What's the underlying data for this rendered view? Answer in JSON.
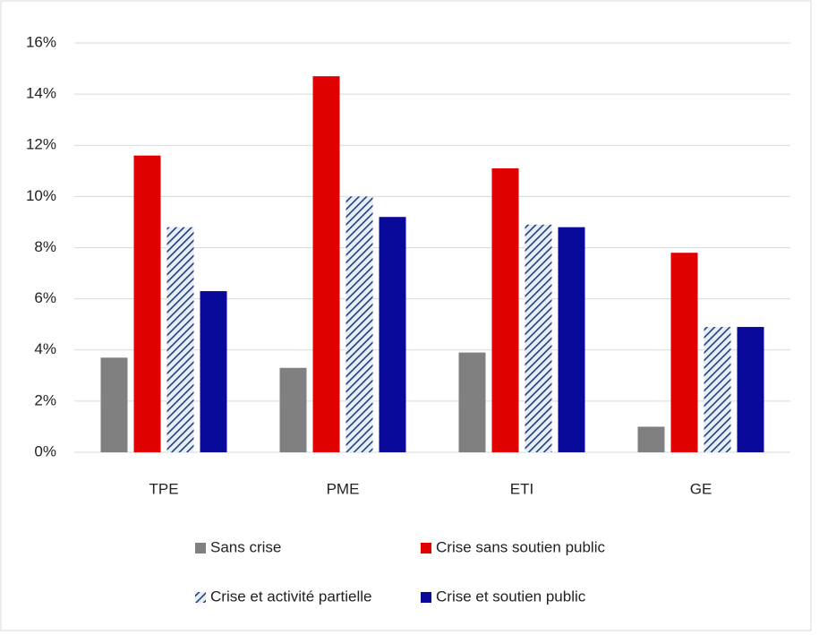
{
  "chart_data": {
    "type": "bar",
    "categories": [
      "TPE",
      "PME",
      "ETI",
      "GE"
    ],
    "series": [
      {
        "name": "Sans crise",
        "color": "#808080",
        "values": [
          3.7,
          3.3,
          3.9,
          1.0
        ]
      },
      {
        "name": "Crise sans soutien public",
        "color": "#e00000",
        "values": [
          11.6,
          14.7,
          11.1,
          7.8
        ]
      },
      {
        "name": "Crise et activité partielle",
        "color": "#1f3f7a",
        "hatch": true,
        "values": [
          8.8,
          10.0,
          8.9,
          4.9
        ]
      },
      {
        "name": "Crise et soutien public",
        "color": "#0a0a9a",
        "values": [
          6.3,
          9.2,
          8.8,
          4.9
        ]
      }
    ],
    "ylim": [
      0,
      16
    ],
    "yticks": [
      {
        "value": 0,
        "label": "0%"
      },
      {
        "value": 2,
        "label": "2%"
      },
      {
        "value": 4,
        "label": "4%"
      },
      {
        "value": 6,
        "label": "6%"
      },
      {
        "value": 8,
        "label": "8%"
      },
      {
        "value": 10,
        "label": "10%"
      },
      {
        "value": 12,
        "label": "12%"
      },
      {
        "value": 14,
        "label": "14%"
      },
      {
        "value": 16,
        "label": "16%"
      }
    ],
    "grid": true,
    "legend": "bottom"
  }
}
